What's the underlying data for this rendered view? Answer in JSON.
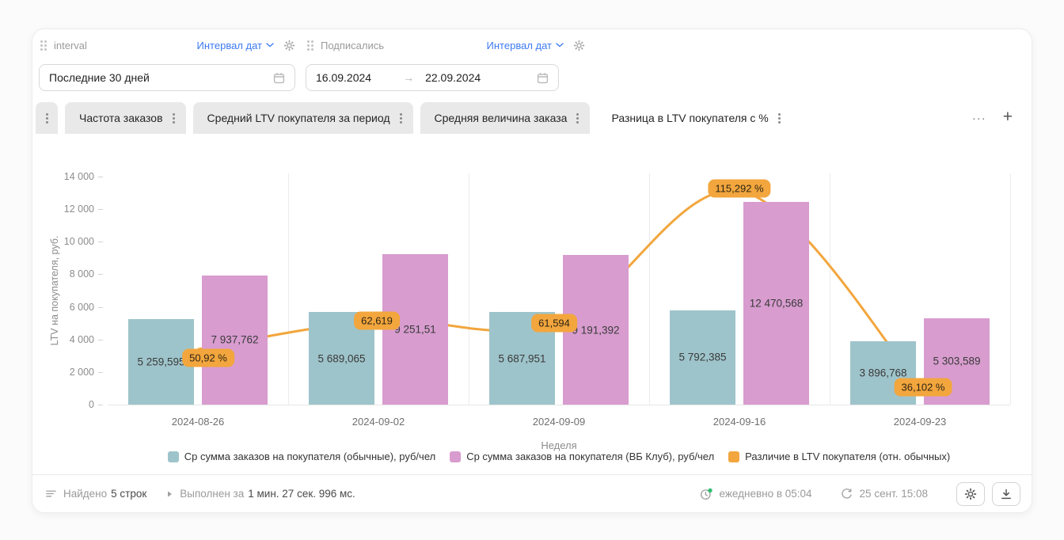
{
  "colors": {
    "accent_blue": "#3d7af2",
    "bar_regular": "#9ec4cb",
    "bar_club": "#d89ccf",
    "diff_orange": "#f2a63d"
  },
  "filters": {
    "groups": [
      {
        "name": "interval",
        "type_label": "Интервал дат",
        "value": "Последние 30 дней"
      },
      {
        "name": "Подписались",
        "type_label": "Интервал дат",
        "date_from": "16.09.2024",
        "arrow": "→",
        "date_to": "22.09.2024"
      }
    ]
  },
  "tabs": {
    "items": [
      {
        "label": "Частота заказов",
        "active": false
      },
      {
        "label": "Средний LTV покупателя за период",
        "active": false
      },
      {
        "label": "Средняя величина заказа",
        "active": false
      },
      {
        "label": "Разница в LTV покупателя с %",
        "active": true
      }
    ],
    "more_label": "···",
    "add_label": "+"
  },
  "chart_data": {
    "type": "bar",
    "categories": [
      "2024-08-26",
      "2024-09-02",
      "2024-09-09",
      "2024-09-16",
      "2024-09-23"
    ],
    "series": [
      {
        "name": "Ср сумма заказов на покупателя (обычные), руб/чел",
        "type": "bar",
        "color": "#9ec4cb",
        "values": [
          5259.595,
          5689.065,
          5687.951,
          5792.385,
          3896.768
        ],
        "labels": [
          "5 259,595",
          "5 689,065",
          "5 687,951",
          "5 792,385",
          "3 896,768"
        ]
      },
      {
        "name": "Ср сумма заказов на покупателя (ВБ Клуб), руб/чел",
        "type": "bar",
        "color": "#d89ccf",
        "values": [
          7937.762,
          9251.51,
          9191.392,
          12470.568,
          5303.589
        ],
        "labels": [
          "7 937,762",
          "9 251,51",
          "9 191,392",
          "12 470,568",
          "5 303,589"
        ]
      },
      {
        "name": "Различие в LTV покупателя (отн. обычных)",
        "type": "line",
        "color": "#f2a63d",
        "values": [
          50.92,
          62.619,
          61.594,
          115.292,
          36.102
        ],
        "labels": [
          "50,92 %",
          "62,619",
          "61,594",
          "115,292 %",
          "36,102 %"
        ]
      }
    ],
    "title": "",
    "xlabel": "Неделя",
    "ylabel": "LTV на покупателя, руб.",
    "ylim": [
      0,
      14000
    ],
    "ytick_labels": [
      "0",
      "2 000",
      "4 000",
      "6 000",
      "8 000",
      "10 000",
      "12 000",
      "14 000"
    ],
    "grid": "vertical-only",
    "legend_position": "bottom"
  },
  "footer": {
    "found_prefix": "Найдено",
    "found_value": "5 строк",
    "executed_prefix": "Выполнен за",
    "executed_value": "1 мин. 27 сек. 996 мс.",
    "schedule": "ежедневно в 05:04",
    "last_refresh": "25 сент. 15:08"
  }
}
